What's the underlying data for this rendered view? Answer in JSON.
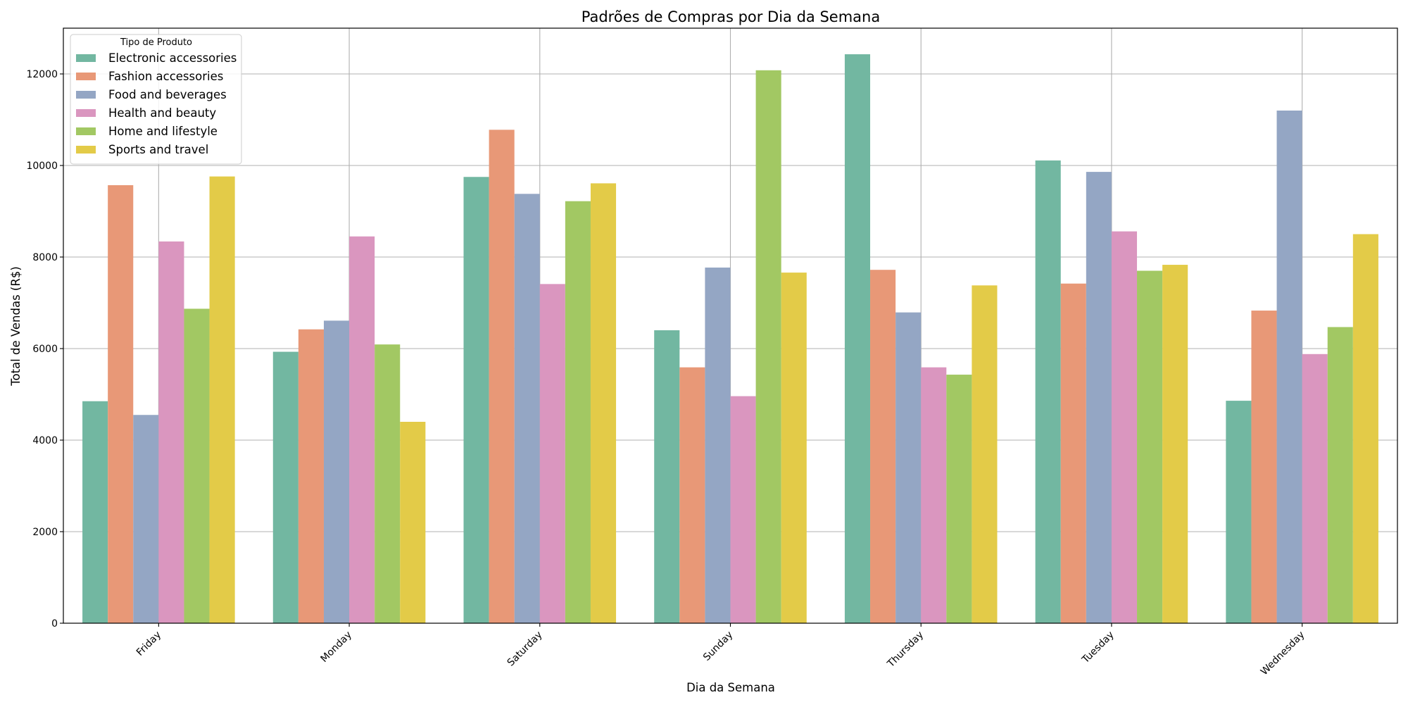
{
  "chart_data": {
    "type": "bar",
    "title": "Padrões de Compras por Dia da Semana",
    "xlabel": "Dia da Semana",
    "ylabel": "Total de Vendas (R$)",
    "categories": [
      "Friday",
      "Monday",
      "Saturday",
      "Sunday",
      "Thursday",
      "Tuesday",
      "Wednesday"
    ],
    "ylim": [
      0,
      13000
    ],
    "yticks": [
      0,
      2000,
      4000,
      6000,
      8000,
      10000,
      12000
    ],
    "grid": true,
    "legend": {
      "title": "Tipo de Produto",
      "placement": "top-left"
    },
    "series": [
      {
        "name": "Electronic accessories",
        "color": "#72b7a1",
        "values": [
          4850,
          5930,
          9750,
          6400,
          12430,
          10110,
          4860
        ]
      },
      {
        "name": "Fashion accessories",
        "color": "#e89877",
        "values": [
          9570,
          6420,
          10780,
          5590,
          7720,
          7420,
          6830
        ]
      },
      {
        "name": "Food and beverages",
        "color": "#94a6c4",
        "values": [
          4550,
          6610,
          9380,
          7770,
          6790,
          9860,
          11200
        ]
      },
      {
        "name": "Health and beauty",
        "color": "#da96bf",
        "values": [
          8340,
          8450,
          7410,
          4960,
          5590,
          8560,
          5880
        ]
      },
      {
        "name": "Home and lifestyle",
        "color": "#a2c863",
        "values": [
          6870,
          6090,
          9220,
          12080,
          5430,
          7700,
          6470
        ]
      },
      {
        "name": "Sports and travel",
        "color": "#e3cb48",
        "values": [
          9760,
          4400,
          9610,
          7660,
          7380,
          7830,
          8500
        ]
      }
    ]
  }
}
